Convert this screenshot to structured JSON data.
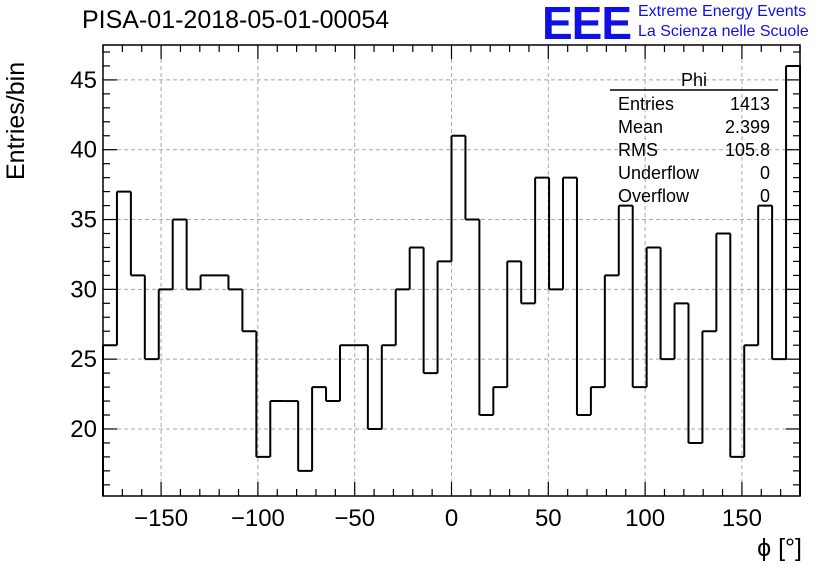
{
  "title": "PISA-01-2018-05-01-00054",
  "logo": {
    "mark": "EEE",
    "line1": "Extreme Energy Events",
    "line2": "La Scienza nelle Scuole",
    "color": "#1010e6"
  },
  "stats": {
    "name": "Phi",
    "rows": [
      {
        "label": "Entries",
        "value": "1413"
      },
      {
        "label": "Mean",
        "value": "2.399"
      },
      {
        "label": "RMS",
        "value": "105.8"
      },
      {
        "label": "Underflow",
        "value": "0"
      },
      {
        "label": "Overflow",
        "value": "0"
      }
    ]
  },
  "chart_data": {
    "type": "bar",
    "style": "step-histogram",
    "xlabel": "ϕ [°]",
    "ylabel": "Entries/bin",
    "xlim": [
      -180,
      180
    ],
    "ylim": [
      15.2,
      47.5
    ],
    "grid": true,
    "bin_width": 7.2,
    "x_ticks": [
      -150,
      -100,
      -50,
      0,
      50,
      100,
      150
    ],
    "x_tick_labels": [
      "−150",
      "−100",
      "−50",
      "0",
      "50",
      "100",
      "150"
    ],
    "y_ticks": [
      20,
      25,
      30,
      35,
      40,
      45
    ],
    "y_tick_labels": [
      "20",
      "25",
      "30",
      "35",
      "40",
      "45"
    ],
    "values": [
      26,
      37,
      31,
      25,
      30,
      35,
      30,
      31,
      31,
      30,
      27,
      18,
      22,
      22,
      17,
      23,
      22,
      26,
      26,
      20,
      26,
      30,
      33,
      24,
      32,
      41,
      35,
      21,
      23,
      32,
      29,
      38,
      30,
      38,
      21,
      23,
      31,
      36,
      23,
      33,
      25,
      29,
      19,
      27,
      34,
      18,
      26,
      36,
      25,
      46
    ]
  }
}
